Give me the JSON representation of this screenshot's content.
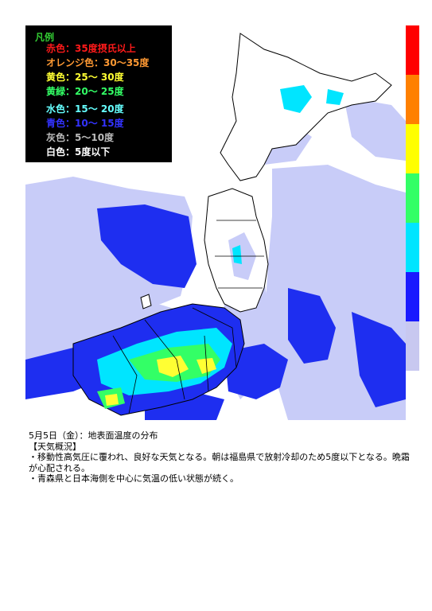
{
  "legend": {
    "title": "凡例",
    "title_color": "#33cc33",
    "items": [
      {
        "label": "赤色：35度摂氏以上",
        "color": "#ff1a1a"
      },
      {
        "label": "オレンジ色：30～35度",
        "color": "#ff9933"
      },
      {
        "label": "黄色：25～ 30度",
        "color": "#ffff33"
      },
      {
        "label": "黄緑：20～ 25度",
        "color": "#33ff66"
      },
      {
        "label": "水色：15～ 20度",
        "color": "#66ffff"
      },
      {
        "label": "青色：10～ 15度",
        "color": "#3333ff"
      },
      {
        "label": "灰色：5～10度",
        "color": "#bbbbbb"
      },
      {
        "label": "白色：5度以下",
        "color": "#ffffff"
      }
    ]
  },
  "scale_colors": [
    "#ff0000",
    "#ff8000",
    "#ffff00",
    "#33ff66",
    "#00e5ff",
    "#1a1aff",
    "#c8c8f0"
  ],
  "map_colors": {
    "sea_warm": "#1e2ef0",
    "cloud": "#c8ccf8",
    "land_white": "#ffffff",
    "cool": "#00e5ff",
    "mild": "#33ff66",
    "warm": "#ffff33",
    "border": "#000000"
  },
  "caption": {
    "title": "5月5日（金）：地表面温度の分布",
    "section": "【天気概況】",
    "line1": "・移動性高気圧に覆われ、良好な天気となる。朝は福島県で放射冷却のため5度以下となる。晩霜が心配される。",
    "line2": "・青森県と日本海側を中心に気温の低い状態が続く。"
  }
}
